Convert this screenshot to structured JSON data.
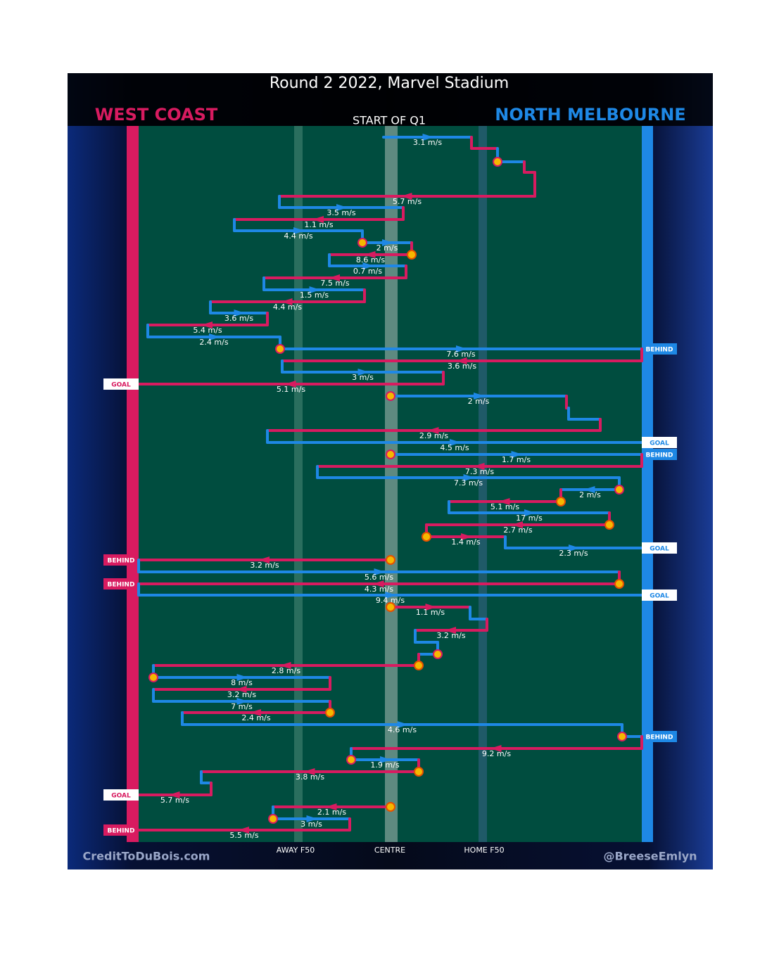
{
  "header": {
    "title": "Round 2 2022, Marvel Stadium",
    "home_team": "WEST COAST",
    "away_team": "NORTH MELBOURNE",
    "subtitle": "START OF Q1"
  },
  "speeds": [
    "3.1 m/s",
    "5.7 m/s",
    "3.5 m/s",
    "1.1 m/s",
    "4.4 m/s",
    "2 m/s",
    "8.6 m/s",
    "0.7 m/s",
    "7.5 m/s",
    "1.5 m/s",
    "4.4 m/s",
    "3.6 m/s",
    "5.4 m/s",
    "2.4 m/s",
    "7.6 m/s",
    "3.6 m/s",
    "3 m/s",
    "5.1 m/s",
    "2 m/s",
    "2.9 m/s",
    "4.5 m/s",
    "1.7 m/s",
    "7.3 m/s",
    "7.3 m/s",
    "2 m/s",
    "5.1 m/s",
    "17 m/s",
    "2.7 m/s",
    "1.4 m/s",
    "2.3 m/s",
    "3.2 m/s",
    "5.6 m/s",
    "4.3 m/s",
    "9.4 m/s",
    "1.1 m/s",
    "3.2 m/s",
    "2.8 m/s",
    "8 m/s",
    "3.2 m/s",
    "7 m/s",
    "2.4 m/s",
    "4.6 m/s",
    "9.2 m/s",
    "1.9 m/s",
    "3.8 m/s",
    "5.7 m/s",
    "2.1 m/s",
    "3 m/s",
    "5.5 m/s"
  ],
  "results": [
    "BEHIND",
    "GOAL",
    "GOAL",
    "BEHIND",
    "GOAL",
    "BEHIND",
    "BEHIND",
    "GOAL",
    "BEHIND",
    "GOAL",
    "BEHIND"
  ],
  "field_labels": [
    "AWAY F50",
    "CENTRE",
    "HOME F50"
  ],
  "footer": {
    "left": "CreditToDuBois.com",
    "right": "@BreeseEmlyn"
  }
}
